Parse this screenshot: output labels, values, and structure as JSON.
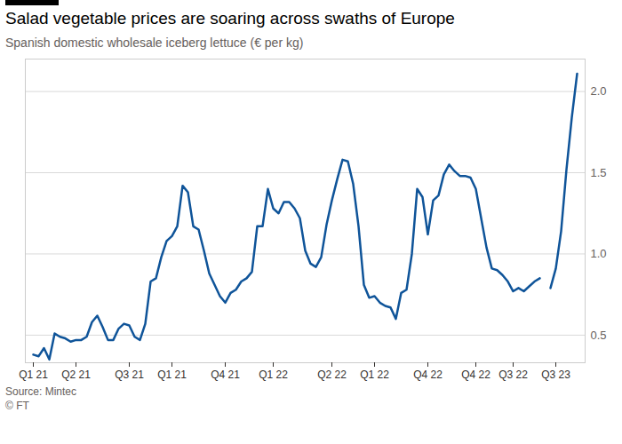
{
  "chart_data": {
    "type": "line",
    "title": "Salad vegetable prices are soaring across swaths of Europe",
    "subtitle": "Spanish domestic wholesale iceberg lettuce (€ per kg)",
    "source": "Source: Mintec",
    "credit": "© FT",
    "categories": [
      "Q1 21",
      null,
      null,
      null,
      null,
      null,
      null,
      null,
      "Q2 21",
      null,
      null,
      null,
      null,
      null,
      null,
      null,
      null,
      null,
      "Q3 21",
      null,
      null,
      null,
      null,
      null,
      null,
      null,
      "Q1 21",
      null,
      null,
      null,
      null,
      null,
      null,
      null,
      null,
      null,
      "Q4 21",
      null,
      null,
      null,
      null,
      null,
      null,
      null,
      null,
      "Q1 22",
      null,
      null,
      null,
      null,
      null,
      null,
      null,
      null,
      null,
      null,
      "Q2 22",
      null,
      null,
      null,
      null,
      null,
      null,
      null,
      "Q1 22",
      null,
      null,
      null,
      null,
      null,
      null,
      null,
      null,
      null,
      "Q4 22",
      null,
      null,
      null,
      null,
      null,
      null,
      null,
      null,
      "Q4 22",
      null,
      null,
      null,
      null,
      null,
      null,
      "Q3 22",
      null,
      null,
      null,
      null,
      null,
      null,
      null,
      "Q3 23",
      null,
      null,
      null,
      null
    ],
    "series": [
      {
        "color": "#0f5499",
        "values": [
          0.38,
          0.37,
          0.42,
          0.35,
          0.51,
          0.49,
          0.48,
          0.46,
          0.47,
          0.47,
          0.49,
          0.58,
          0.62,
          0.55,
          0.47,
          0.47,
          0.54,
          0.57,
          0.56,
          0.49,
          0.47,
          0.57,
          0.83,
          0.85,
          0.98,
          1.08,
          1.11,
          1.17,
          1.42,
          1.38,
          1.17,
          1.15,
          1.02,
          0.88,
          0.81,
          0.74,
          0.7,
          0.76,
          0.78,
          0.83,
          0.85,
          0.89,
          1.17,
          1.17,
          1.4,
          1.28,
          1.25,
          1.32,
          1.32,
          1.28,
          1.22,
          1.02,
          0.94,
          0.92,
          0.98,
          1.18,
          1.33,
          1.46,
          1.58,
          1.57,
          1.43,
          1.17,
          0.81,
          0.73,
          0.74,
          0.7,
          0.68,
          0.67,
          0.6,
          0.76,
          0.78,
          1.0,
          1.4,
          1.35,
          1.12,
          1.33,
          1.36,
          1.49,
          1.55,
          1.51,
          1.48,
          1.48,
          1.47,
          1.4,
          1.22,
          1.04,
          0.91,
          0.9,
          0.87,
          0.83,
          0.77,
          0.79,
          0.77,
          0.8,
          0.83,
          0.85,
          null,
          0.79,
          0.91,
          1.14,
          1.52,
          1.84,
          2.11
        ]
      }
    ],
    "ylim": [
      0.33,
      2.2
    ],
    "yticks": [
      {
        "value": 0.5,
        "label": "0.5"
      },
      {
        "value": 1,
        "label": "1.0"
      },
      {
        "value": 1.5,
        "label": "1.5"
      },
      {
        "value": 2,
        "label": "2.0"
      }
    ],
    "grid": true
  }
}
